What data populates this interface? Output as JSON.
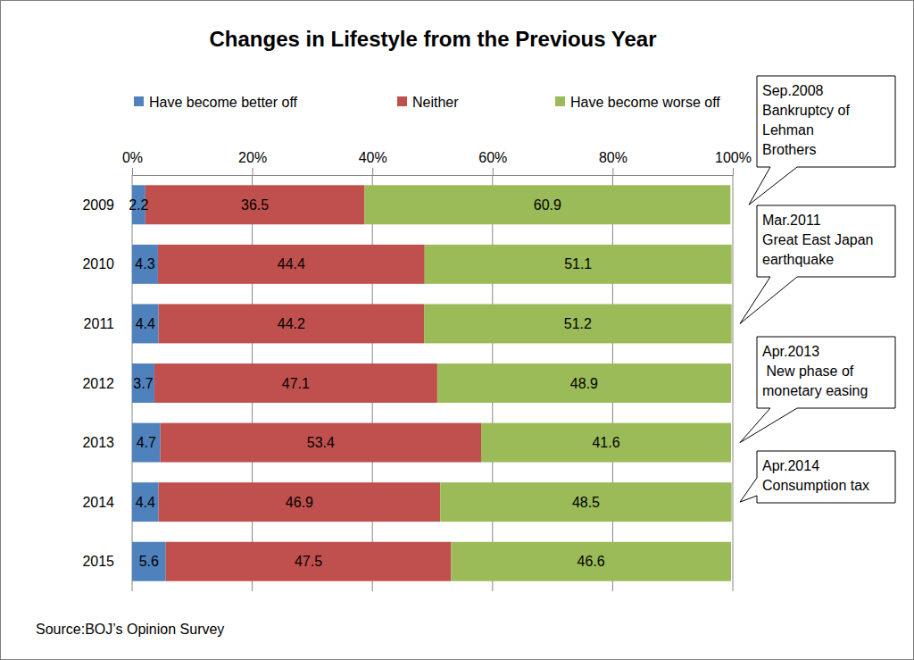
{
  "chart_data": {
    "type": "bar",
    "title": "Changes in Lifestyle from the Previous Year",
    "orientation": "horizontal",
    "stacked": true,
    "data_labels": true,
    "grid": true,
    "legend": "top",
    "categories": [
      "2009",
      "2010",
      "2011",
      "2012",
      "2013",
      "2014",
      "2015"
    ],
    "series": [
      {
        "name": "Have become better off",
        "color": "#4f81bd",
        "values": [
          2.2,
          4.3,
          4.4,
          3.7,
          4.7,
          4.4,
          5.6
        ]
      },
      {
        "name": "Neither",
        "color": "#c0504d",
        "values": [
          36.5,
          44.4,
          44.2,
          47.1,
          53.4,
          46.9,
          47.5
        ]
      },
      {
        "name": "Have become worse off",
        "color": "#9bbb59",
        "values": [
          60.9,
          51.1,
          51.2,
          48.9,
          41.6,
          48.5,
          46.6
        ]
      }
    ],
    "xlim": [
      0,
      100
    ],
    "xticks": [
      {
        "value": 0,
        "label": "0%"
      },
      {
        "value": 20,
        "label": "20%"
      },
      {
        "value": 40,
        "label": "40%"
      },
      {
        "value": 60,
        "label": "60%"
      },
      {
        "value": 80,
        "label": "80%"
      },
      {
        "value": 100,
        "label": "100%"
      }
    ],
    "annotations": [
      {
        "text": [
          "Sep.2008",
          "Bankruptcy of",
          "Lehman",
          "Brothers"
        ],
        "category": "2009"
      },
      {
        "text": [
          "Mar.2011",
          "Great East Japan",
          "earthquake"
        ],
        "category": "2011"
      },
      {
        "text": [
          "Apr.2013",
          " New phase of",
          "monetary easing"
        ],
        "category": "2013"
      },
      {
        "text": [
          "Apr.2014",
          "Consumption tax"
        ],
        "category": "2014"
      }
    ],
    "source": "Source:BOJ’s Opinion Survey"
  }
}
